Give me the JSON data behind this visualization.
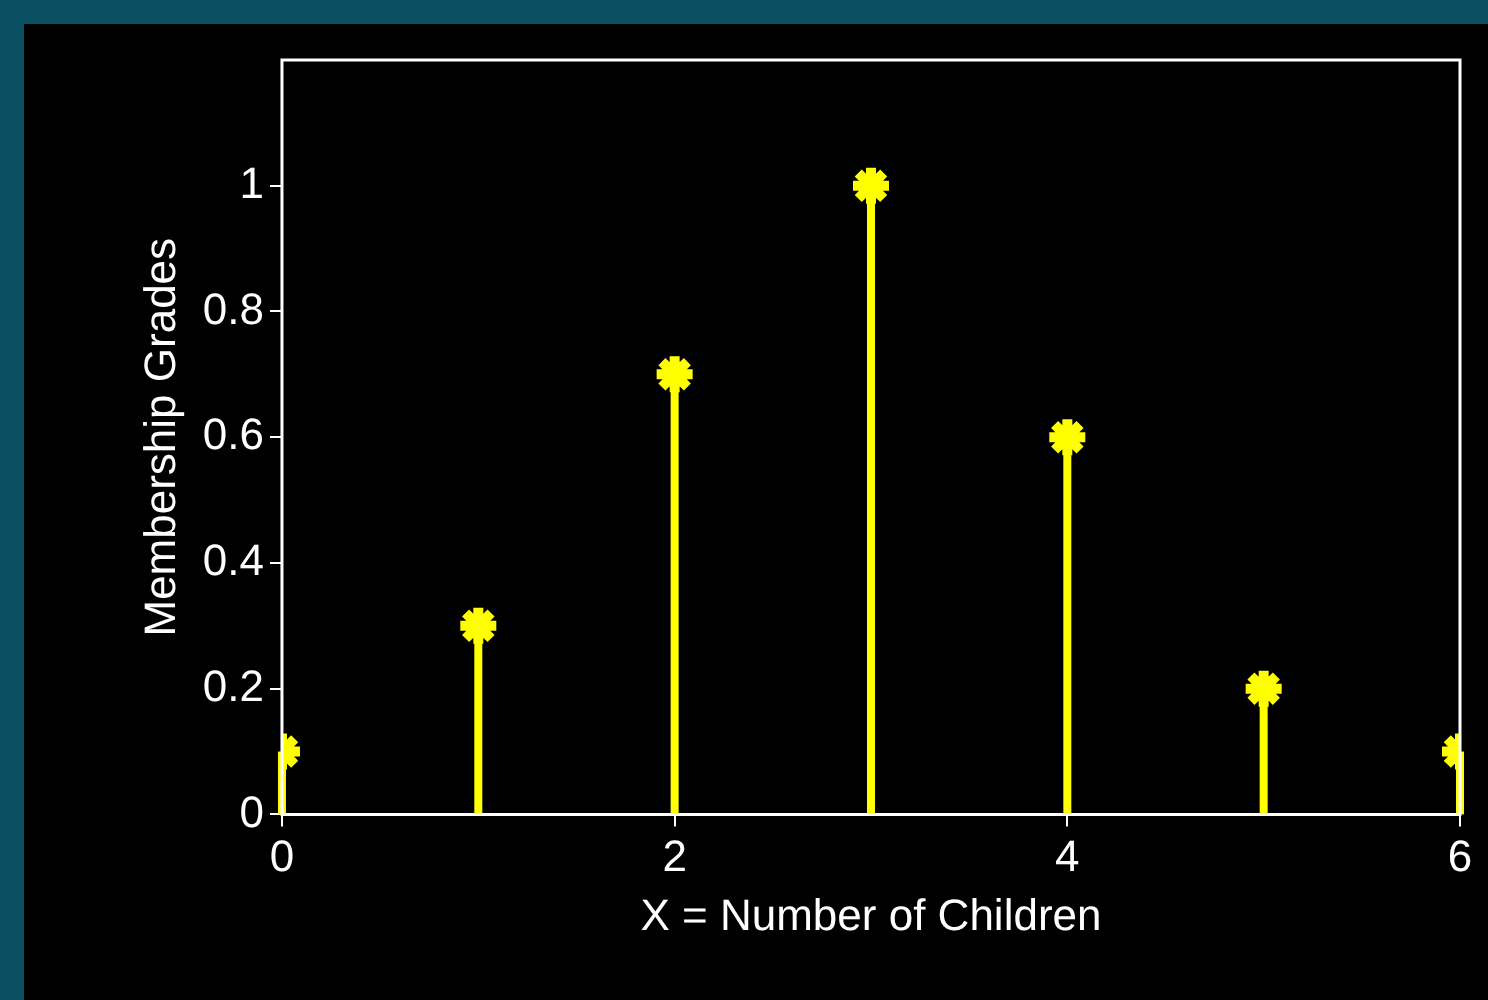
{
  "chart_data": {
    "type": "lollipop",
    "x": [
      0,
      1,
      2,
      3,
      4,
      5,
      6
    ],
    "values": [
      0.1,
      0.3,
      0.7,
      1,
      0.6,
      0.2,
      0.1
    ],
    "color": "#ffff00",
    "marker": "cross",
    "xlim": [
      0,
      6
    ],
    "ylim": [
      0,
      1.2
    ],
    "xticks": [
      0,
      2,
      4,
      6
    ],
    "yticks": [
      0,
      0.2,
      0.4,
      0.6,
      0.8,
      1
    ],
    "xlabel": "X = Number of Children",
    "ylabel": "Membership Grades"
  }
}
